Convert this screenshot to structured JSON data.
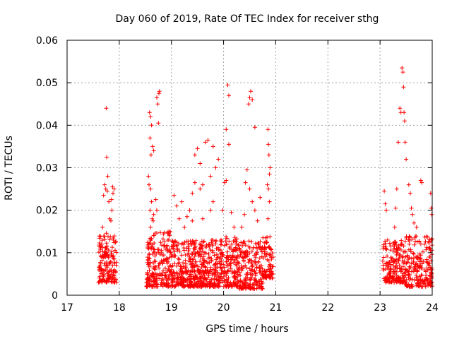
{
  "chart_data": {
    "type": "scatter",
    "title": "Day 060 of 2019, Rate Of TEC Index for receiver sthg",
    "xlabel": "GPS time / hours",
    "ylabel": "ROTI / TECUs",
    "xlim": [
      17,
      24
    ],
    "ylim": [
      0,
      0.06
    ],
    "x_ticks": [
      "17",
      "18",
      "19",
      "20",
      "21",
      "22",
      "23",
      "24"
    ],
    "y_ticks": [
      "0",
      "0.01",
      "0.02",
      "0.03",
      "0.04",
      "0.05",
      "0.06"
    ],
    "grid": true,
    "marker": "+",
    "marker_color": "#ff0000",
    "series": [
      {
        "name": "ROTI",
        "clusters": [
          {
            "x_range": [
              17.6,
              17.95
            ],
            "dense_y_range": [
              0.003,
              0.015
            ],
            "count": 170,
            "outliers": [
              [
                17.75,
                0.044
              ],
              [
                17.76,
                0.0325
              ],
              [
                17.72,
                0.026
              ],
              [
                17.74,
                0.025
              ],
              [
                17.78,
                0.028
              ],
              [
                17.7,
                0.0235
              ],
              [
                17.77,
                0.0245
              ],
              [
                17.8,
                0.022
              ],
              [
                17.82,
                0.018
              ],
              [
                17.84,
                0.0175
              ],
              [
                17.87,
                0.0255
              ],
              [
                17.88,
                0.024
              ],
              [
                17.85,
                0.0225
              ],
              [
                17.9,
                0.025
              ],
              [
                17.86,
                0.02
              ],
              [
                17.68,
                0.016
              ]
            ]
          },
          {
            "x_range": [
              18.52,
              19.0
            ],
            "dense_y_range": [
              0.002,
              0.015
            ],
            "count": 220,
            "outliers": [
              [
                18.58,
                0.043
              ],
              [
                18.6,
                0.042
              ],
              [
                18.62,
                0.04
              ],
              [
                18.59,
                0.037
              ],
              [
                18.61,
                0.033
              ],
              [
                18.64,
                0.035
              ],
              [
                18.66,
                0.034
              ],
              [
                18.72,
                0.0465
              ],
              [
                18.74,
                0.045
              ],
              [
                18.76,
                0.0475
              ],
              [
                18.77,
                0.048
              ],
              [
                18.75,
                0.0405
              ],
              [
                18.57,
                0.026
              ],
              [
                18.6,
                0.025
              ],
              [
                18.62,
                0.022
              ],
              [
                18.59,
                0.02
              ],
              [
                18.63,
                0.018
              ],
              [
                18.6,
                0.016
              ],
              [
                18.65,
                0.0175
              ],
              [
                18.66,
                0.019
              ],
              [
                18.7,
                0.0225
              ],
              [
                18.72,
                0.02
              ],
              [
                18.56,
                0.028
              ]
            ]
          },
          {
            "x_range": [
              19.0,
              19.95
            ],
            "dense_y_range": [
              0.002,
              0.013
            ],
            "count": 480,
            "outliers": [
              [
                19.05,
                0.0235
              ],
              [
                19.1,
                0.021
              ],
              [
                19.2,
                0.022
              ],
              [
                19.3,
                0.0185
              ],
              [
                19.4,
                0.024
              ],
              [
                19.45,
                0.033
              ],
              [
                19.5,
                0.0345
              ],
              [
                19.55,
                0.025
              ],
              [
                19.6,
                0.026
              ],
              [
                19.65,
                0.036
              ],
              [
                19.7,
                0.0365
              ],
              [
                19.75,
                0.028
              ],
              [
                19.8,
                0.035
              ],
              [
                19.85,
                0.03
              ],
              [
                19.9,
                0.032
              ],
              [
                19.35,
                0.02
              ],
              [
                19.15,
                0.018
              ],
              [
                19.25,
                0.016
              ],
              [
                19.4,
                0.0175
              ],
              [
                19.6,
                0.018
              ],
              [
                19.75,
                0.02
              ],
              [
                19.8,
                0.022
              ],
              [
                19.55,
                0.031
              ],
              [
                19.45,
                0.0265
              ]
            ]
          },
          {
            "x_range": [
              19.95,
              20.3
            ],
            "dense_y_range": [
              0.002,
              0.014
            ],
            "count": 160,
            "outliers": [
              [
                20.08,
                0.0495
              ],
              [
                20.1,
                0.047
              ],
              [
                20.05,
                0.039
              ],
              [
                20.1,
                0.0355
              ],
              [
                20.02,
                0.0265
              ],
              [
                20.05,
                0.027
              ],
              [
                19.98,
                0.02
              ],
              [
                20.15,
                0.0195
              ],
              [
                20.2,
                0.016
              ],
              [
                20.25,
                0.012
              ]
            ]
          },
          {
            "x_range": [
              20.3,
              20.75
            ],
            "dense_y_range": [
              0.0015,
              0.013
            ],
            "count": 200,
            "outliers": [
              [
                20.52,
                0.048
              ],
              [
                20.5,
                0.0465
              ],
              [
                20.48,
                0.045
              ],
              [
                20.55,
                0.046
              ],
              [
                20.6,
                0.0395
              ],
              [
                20.45,
                0.0295
              ],
              [
                20.42,
                0.0265
              ],
              [
                20.5,
                0.025
              ],
              [
                20.55,
                0.022
              ],
              [
                20.6,
                0.02
              ],
              [
                20.4,
                0.019
              ],
              [
                20.35,
                0.016
              ],
              [
                20.65,
                0.0175
              ],
              [
                20.7,
                0.023
              ]
            ]
          },
          {
            "x_range": [
              20.75,
              20.95
            ],
            "dense_y_range": [
              0.004,
              0.014
            ],
            "count": 80,
            "outliers": [
              [
                20.85,
                0.039
              ],
              [
                20.86,
                0.0355
              ],
              [
                20.87,
                0.033
              ],
              [
                20.88,
                0.0285
              ],
              [
                20.89,
                0.03
              ],
              [
                20.84,
                0.026
              ],
              [
                20.86,
                0.025
              ],
              [
                20.88,
                0.022
              ],
              [
                20.85,
                0.018
              ]
            ]
          },
          {
            "x_range": [
              23.05,
              23.5
            ],
            "dense_y_range": [
              0.003,
              0.013
            ],
            "count": 200,
            "outliers": [
              [
                23.08,
                0.0245
              ],
              [
                23.1,
                0.0215
              ],
              [
                23.12,
                0.02
              ],
              [
                23.3,
                0.0205
              ],
              [
                23.35,
                0.036
              ],
              [
                23.38,
                0.044
              ],
              [
                23.4,
                0.043
              ],
              [
                23.42,
                0.0535
              ],
              [
                23.44,
                0.0525
              ],
              [
                23.45,
                0.049
              ],
              [
                23.46,
                0.043
              ],
              [
                23.47,
                0.041
              ],
              [
                23.48,
                0.036
              ],
              [
                23.5,
                0.032
              ],
              [
                23.32,
                0.025
              ],
              [
                23.28,
                0.016
              ]
            ]
          },
          {
            "x_range": [
              23.5,
              24.0
            ],
            "dense_y_range": [
              0.002,
              0.014
            ],
            "count": 200,
            "outliers": [
              [
                23.55,
                0.026
              ],
              [
                23.58,
                0.024
              ],
              [
                23.6,
                0.0205
              ],
              [
                23.62,
                0.019
              ],
              [
                23.65,
                0.017
              ],
              [
                23.7,
                0.016
              ],
              [
                23.78,
                0.027
              ],
              [
                23.8,
                0.0265
              ],
              [
                23.97,
                0.024
              ],
              [
                23.98,
                0.0205
              ],
              [
                23.99,
                0.019
              ],
              [
                23.96,
                0.011
              ],
              [
                23.85,
                0.012
              ],
              [
                23.9,
                0.008
              ],
              [
                23.99,
                0.006
              ],
              [
                23.99,
                0.004
              ],
              [
                23.99,
                0.005
              ],
              [
                23.98,
                0.003
              ]
            ]
          }
        ]
      }
    ]
  }
}
